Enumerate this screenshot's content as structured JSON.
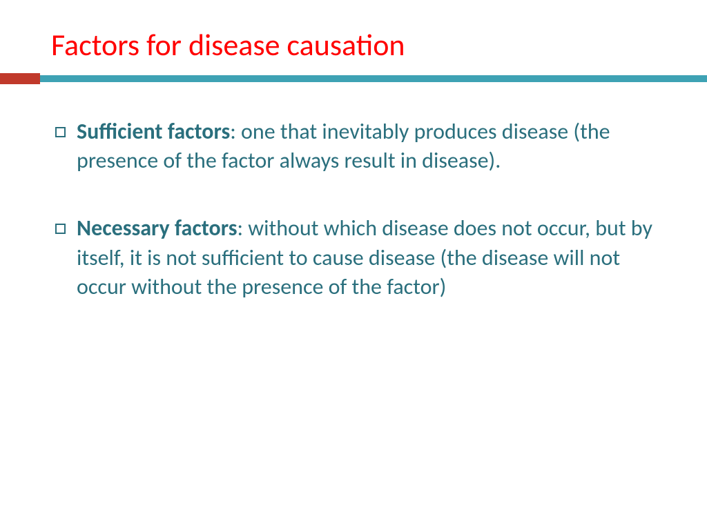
{
  "title": {
    "text": "Factors for disease causation",
    "color": "#ff0000",
    "fontsize": 44,
    "fontweight": 400
  },
  "divider": {
    "accent_color": "#c0392b",
    "accent_width": 58,
    "main_color": "#3ea2b4"
  },
  "body": {
    "text_color": "#2a6f7d",
    "fontsize": 32,
    "lineheight": 1.32,
    "bullet_border_color": "#2a6f7d",
    "bullet_border_width": 2
  },
  "bullets": [
    {
      "bold": "Sufficient factors",
      "rest": ": one that inevitably produces disease (the presence of the factor always result in disease)."
    },
    {
      "bold": "Necessary factors",
      "rest": ": without which disease does not occur, but by itself, it is not sufficient to cause disease (the disease will not occur without the presence of the factor)"
    }
  ]
}
